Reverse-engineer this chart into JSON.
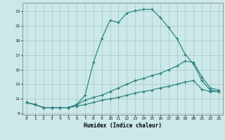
{
  "xlabel": "Humidex (Indice chaleur)",
  "bg_color": "#cce8e8",
  "grid_color": "#aacccc",
  "line_color": "#2a8080",
  "xlim": [
    -0.5,
    23.5
  ],
  "ylim": [
    8.8,
    24.2
  ],
  "xticks": [
    0,
    1,
    2,
    3,
    4,
    5,
    6,
    7,
    8,
    9,
    10,
    11,
    12,
    13,
    14,
    15,
    16,
    17,
    18,
    19,
    20,
    21,
    22,
    23
  ],
  "yticks": [
    9,
    11,
    13,
    15,
    17,
    19,
    21,
    23
  ],
  "line1_x": [
    0,
    1,
    2,
    3,
    4,
    5,
    6,
    7,
    8,
    9,
    10,
    11,
    12,
    13,
    14,
    15,
    16,
    17,
    18,
    19,
    20,
    21,
    22,
    23
  ],
  "line1_y": [
    10.5,
    10.2,
    9.8,
    9.8,
    9.8,
    9.8,
    10.2,
    11.5,
    16.0,
    19.3,
    21.8,
    21.5,
    22.8,
    23.1,
    23.3,
    23.3,
    22.2,
    20.8,
    19.3,
    17.1,
    15.8,
    13.5,
    12.2,
    12.0
  ],
  "line2_x": [
    0,
    1,
    2,
    3,
    4,
    5,
    6,
    7,
    8,
    9,
    10,
    11,
    12,
    13,
    14,
    15,
    16,
    17,
    18,
    19,
    20,
    21,
    22,
    23
  ],
  "line2_y": [
    10.5,
    10.2,
    9.8,
    9.8,
    9.8,
    9.8,
    10.2,
    10.8,
    11.2,
    11.5,
    12.0,
    12.5,
    13.0,
    13.5,
    13.8,
    14.2,
    14.5,
    15.0,
    15.5,
    16.2,
    16.0,
    14.0,
    12.5,
    12.2
  ],
  "line3_x": [
    0,
    1,
    2,
    3,
    4,
    5,
    6,
    7,
    8,
    9,
    10,
    11,
    12,
    13,
    14,
    15,
    16,
    17,
    18,
    19,
    20,
    21,
    22,
    23
  ],
  "line3_y": [
    10.5,
    10.2,
    9.8,
    9.8,
    9.8,
    9.8,
    10.0,
    10.2,
    10.5,
    10.8,
    11.0,
    11.2,
    11.5,
    11.8,
    12.0,
    12.2,
    12.5,
    12.7,
    13.0,
    13.3,
    13.5,
    12.3,
    12.0,
    12.0
  ]
}
